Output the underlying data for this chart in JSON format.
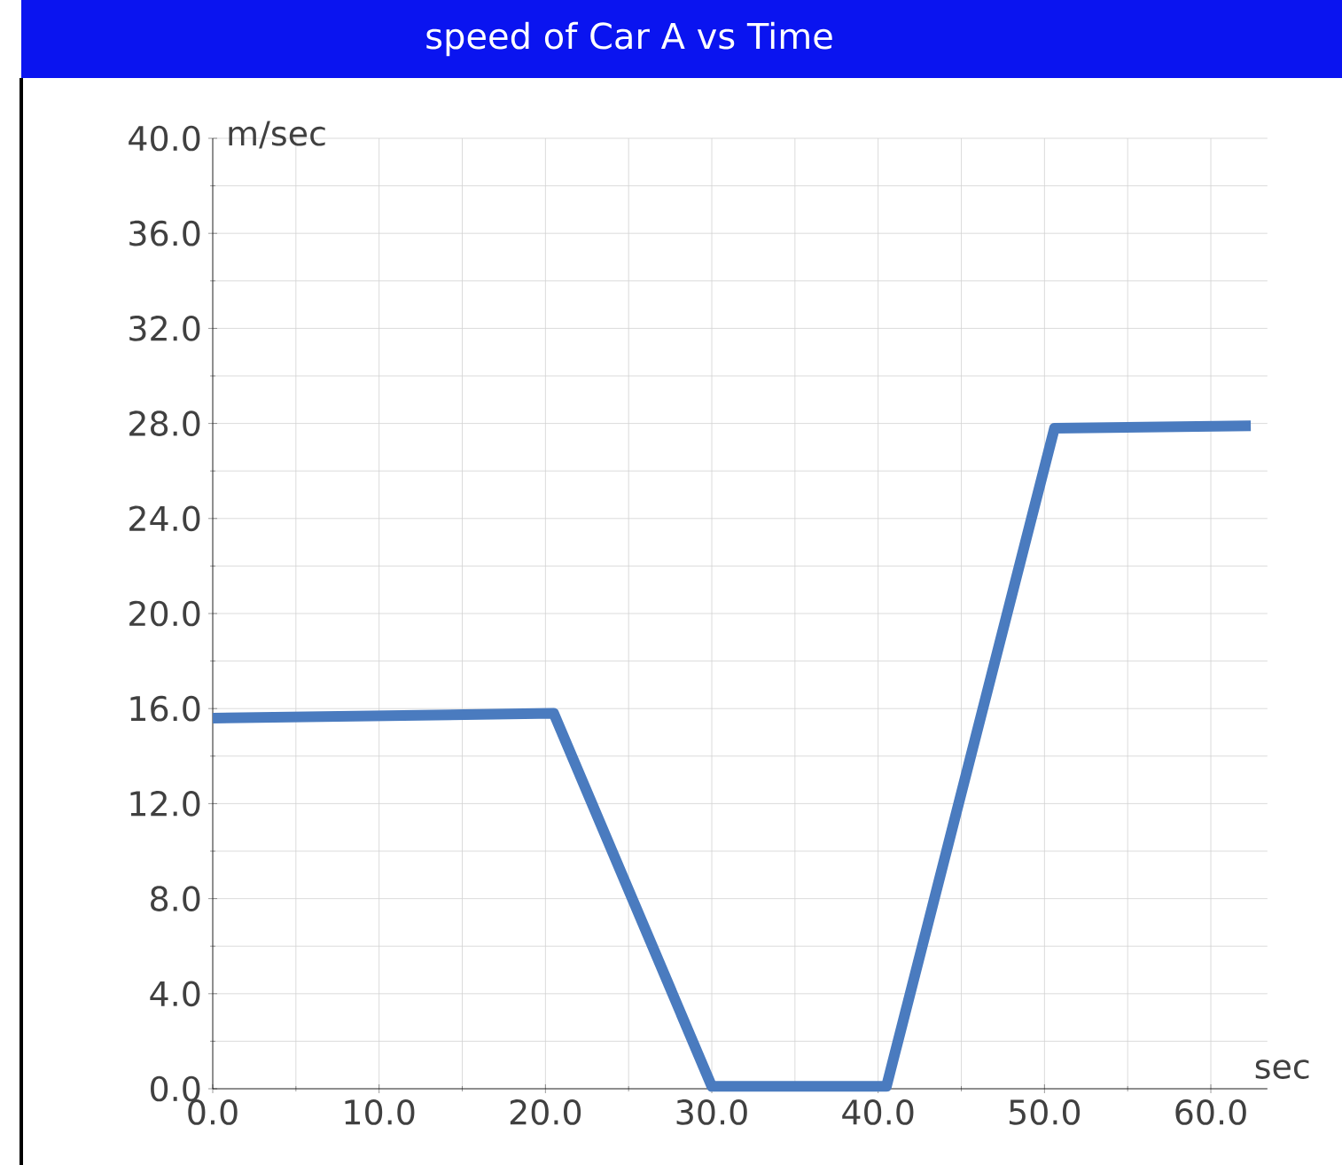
{
  "chart_data": {
    "type": "line",
    "title": "speed of Car A vs Time",
    "xlabel": "sec",
    "ylabel": "m/sec",
    "x": [
      0,
      20.5,
      30,
      40.5,
      50.6,
      62.4
    ],
    "series": [
      {
        "color": "#4a7bbf",
        "values": [
          15.6,
          15.8,
          0.1,
          0.1,
          27.8,
          27.9
        ]
      }
    ],
    "xlim": [
      0,
      63.4
    ],
    "ylim": [
      0,
      40
    ],
    "xticks": [
      {
        "value": 0,
        "label": "0.0"
      },
      {
        "value": 10,
        "label": "10.0"
      },
      {
        "value": 20,
        "label": "20.0"
      },
      {
        "value": 30,
        "label": "30.0"
      },
      {
        "value": 40,
        "label": "40.0"
      },
      {
        "value": 50,
        "label": "50.0"
      },
      {
        "value": 60,
        "label": "60.0"
      }
    ],
    "yticks": [
      {
        "value": 0,
        "label": "0.0"
      },
      {
        "value": 4,
        "label": "4.0"
      },
      {
        "value": 8,
        "label": "8.0"
      },
      {
        "value": 12,
        "label": "12.0"
      },
      {
        "value": 16,
        "label": "16.0"
      },
      {
        "value": 20,
        "label": "20.0"
      },
      {
        "value": 24,
        "label": "24.0"
      },
      {
        "value": 28,
        "label": "28.0"
      },
      {
        "value": 32,
        "label": "32.0"
      },
      {
        "value": 36,
        "label": "36.0"
      },
      {
        "value": 40,
        "label": "40.0"
      }
    ],
    "grid": true,
    "marker": "none",
    "line_style": "solid"
  }
}
